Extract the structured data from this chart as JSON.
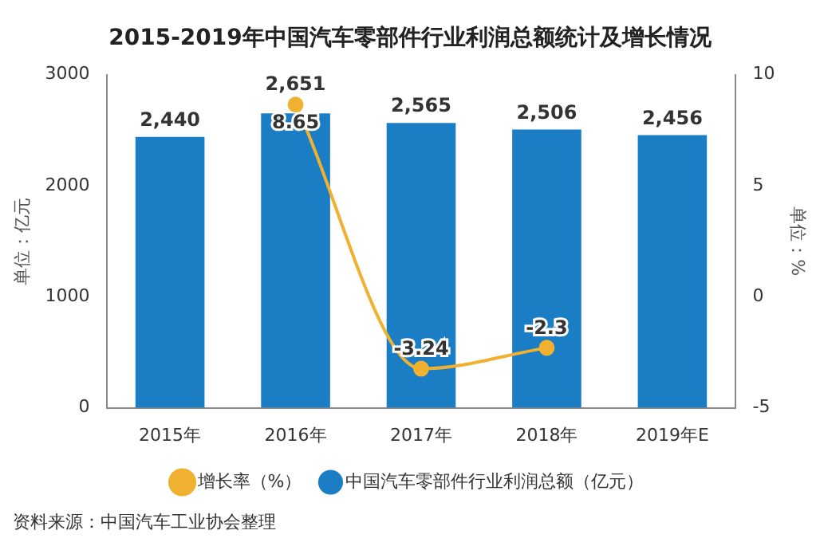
{
  "chart_data": {
    "type": "bar",
    "title": "2015-2019年中国汽车零部件行业利润总额统计及增长情况",
    "categories": [
      "2015年",
      "2016年",
      "2017年",
      "2018年",
      "2019年E"
    ],
    "series": [
      {
        "name": "中国汽车零部件行业利润总额（亿元）",
        "color": "#1b7ec4",
        "values": [
          2440,
          2651,
          2565,
          2506,
          2456
        ],
        "value_labels": [
          "2,440",
          "2,651",
          "2,565",
          "2,506",
          "2,456"
        ]
      },
      {
        "name": "增长率（%）",
        "type": "line",
        "axis": "y2",
        "color": "#f0b030",
        "values": [
          null,
          8.65,
          -3.24,
          -2.3,
          null
        ],
        "value_labels": [
          null,
          "8.65",
          "-3.24",
          "-2.3",
          null
        ]
      }
    ],
    "ylabel": "单位：亿元",
    "y2label": "单位：%",
    "ylim": [
      0,
      3000
    ],
    "yticks": [
      0,
      1000,
      2000,
      3000
    ],
    "y2lim": [
      -5,
      10
    ],
    "y2ticks": [
      -5,
      0,
      5,
      10
    ],
    "grid": false,
    "legend": "bottom",
    "marker": "circle",
    "annotations": [
      "资料来源：中国汽车工业协会整理"
    ]
  }
}
